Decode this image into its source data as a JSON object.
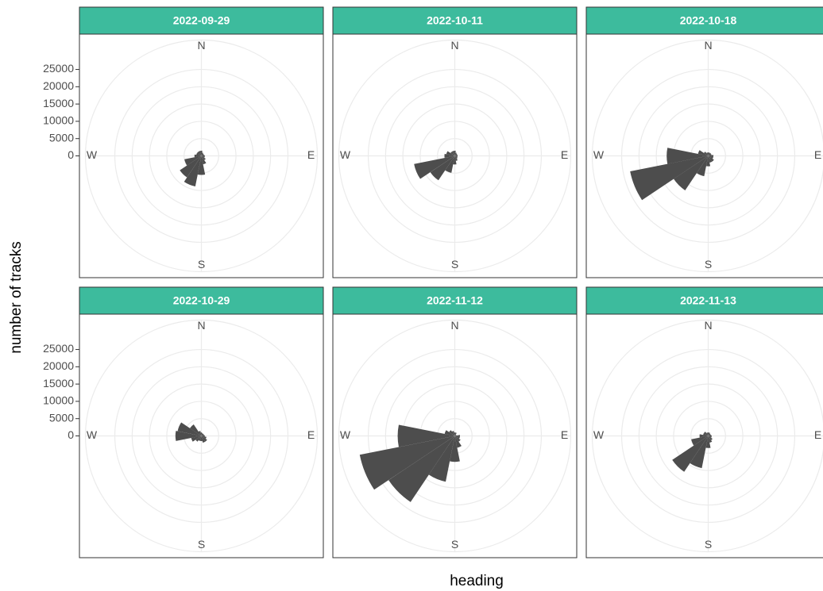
{
  "xlabel": "heading",
  "ylabel": "number of tracks",
  "chart_data": [
    {
      "type": "polar-bar",
      "title": "2022-09-29",
      "color": "#4d4d4d",
      "x": [
        0,
        22.5,
        45,
        67.5,
        90,
        112.5,
        135,
        157.5,
        180,
        202.5,
        225,
        247.5,
        270,
        292.5,
        315,
        337.5
      ],
      "values": [
        1500,
        1000,
        800,
        800,
        1000,
        1000,
        1500,
        2500,
        5500,
        9000,
        7500,
        5000,
        2000,
        1500,
        1500,
        1500
      ],
      "xlim": [
        0,
        360
      ],
      "xticks": [
        {
          "value": 0,
          "label": "N"
        },
        {
          "value": 90,
          "label": "E"
        },
        {
          "value": 180,
          "label": "S"
        },
        {
          "value": 270,
          "label": "W"
        }
      ],
      "ylim": [
        0,
        33500
      ],
      "yticks": [
        0,
        5000,
        10000,
        15000,
        20000,
        25000
      ]
    },
    {
      "type": "polar-bar",
      "title": "2022-10-11",
      "color": "#4d4d4d",
      "x": [
        0,
        22.5,
        45,
        67.5,
        90,
        112.5,
        135,
        157.5,
        180,
        202.5,
        225,
        247.5,
        270,
        292.5,
        315,
        337.5
      ],
      "values": [
        1500,
        1000,
        800,
        800,
        800,
        800,
        1000,
        1500,
        2500,
        5000,
        8500,
        12000,
        3000,
        2500,
        1500,
        1500
      ],
      "xlim": [
        0,
        360
      ],
      "xticks": [
        {
          "value": 0,
          "label": "N"
        },
        {
          "value": 90,
          "label": "E"
        },
        {
          "value": 180,
          "label": "S"
        },
        {
          "value": 270,
          "label": "W"
        }
      ],
      "ylim": [
        0,
        33500
      ],
      "yticks": [
        0,
        5000,
        10000,
        15000,
        20000,
        25000
      ]
    },
    {
      "type": "polar-bar",
      "title": "2022-10-18",
      "color": "#4d4d4d",
      "x": [
        0,
        22.5,
        45,
        67.5,
        90,
        112.5,
        135,
        157.5,
        180,
        202.5,
        225,
        247.5,
        270,
        292.5,
        315,
        337.5
      ],
      "values": [
        1000,
        1000,
        1000,
        1000,
        1500,
        1500,
        2000,
        2000,
        3000,
        6000,
        12000,
        23000,
        12000,
        3000,
        1500,
        1000
      ],
      "xlim": [
        0,
        360
      ],
      "xticks": [
        {
          "value": 0,
          "label": "N"
        },
        {
          "value": 90,
          "label": "E"
        },
        {
          "value": 180,
          "label": "S"
        },
        {
          "value": 270,
          "label": "W"
        }
      ],
      "ylim": [
        0,
        33500
      ],
      "yticks": [
        0,
        5000,
        10000,
        15000,
        20000,
        25000
      ]
    },
    {
      "type": "polar-bar",
      "title": "2022-10-29",
      "color": "#4d4d4d",
      "x": [
        0,
        22.5,
        45,
        67.5,
        90,
        112.5,
        135,
        157.5,
        180,
        202.5,
        225,
        247.5,
        270,
        292.5,
        315,
        337.5
      ],
      "values": [
        1000,
        800,
        800,
        800,
        1000,
        1500,
        2000,
        2000,
        1500,
        1500,
        2000,
        3000,
        7500,
        7000,
        4000,
        1500
      ],
      "xlim": [
        0,
        360
      ],
      "xticks": [
        {
          "value": 0,
          "label": "N"
        },
        {
          "value": 90,
          "label": "E"
        },
        {
          "value": 180,
          "label": "S"
        },
        {
          "value": 270,
          "label": "W"
        }
      ],
      "ylim": [
        0,
        33500
      ],
      "yticks": [
        0,
        5000,
        10000,
        15000,
        20000,
        25000
      ]
    },
    {
      "type": "polar-bar",
      "title": "2022-11-12",
      "color": "#4d4d4d",
      "x": [
        0,
        22.5,
        45,
        67.5,
        90,
        112.5,
        135,
        157.5,
        180,
        202.5,
        225,
        247.5,
        270,
        292.5,
        315,
        337.5
      ],
      "values": [
        1000,
        1000,
        500,
        500,
        1500,
        1500,
        2000,
        3500,
        7500,
        13500,
        23000,
        28000,
        16500,
        3000,
        2000,
        1500
      ],
      "xlim": [
        0,
        360
      ],
      "xticks": [
        {
          "value": 0,
          "label": "N"
        },
        {
          "value": 90,
          "label": "E"
        },
        {
          "value": 180,
          "label": "S"
        },
        {
          "value": 270,
          "label": "W"
        }
      ],
      "ylim": [
        0,
        33500
      ],
      "yticks": [
        0,
        5000,
        10000,
        15000,
        20000,
        25000
      ]
    },
    {
      "type": "polar-bar",
      "title": "2022-11-13",
      "color": "#4d4d4d",
      "x": [
        0,
        22.5,
        45,
        67.5,
        90,
        112.5,
        135,
        157.5,
        180,
        202.5,
        225,
        247.5,
        270,
        292.5,
        315,
        337.5
      ],
      "values": [
        1000,
        1000,
        800,
        800,
        1000,
        1000,
        1500,
        2000,
        3500,
        9500,
        12500,
        5000,
        2500,
        1500,
        1500,
        1000
      ],
      "xlim": [
        0,
        360
      ],
      "xticks": [
        {
          "value": 0,
          "label": "N"
        },
        {
          "value": 90,
          "label": "E"
        },
        {
          "value": 180,
          "label": "S"
        },
        {
          "value": 270,
          "label": "W"
        }
      ],
      "ylim": [
        0,
        33500
      ],
      "yticks": [
        0,
        5000,
        10000,
        15000,
        20000,
        25000
      ]
    }
  ]
}
